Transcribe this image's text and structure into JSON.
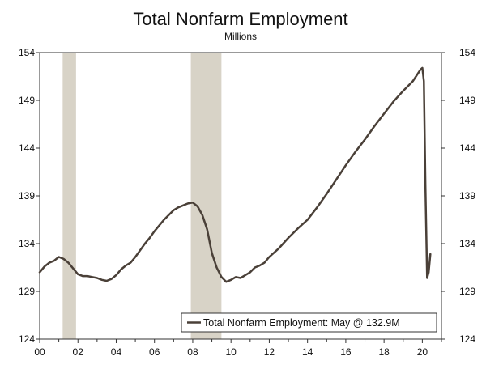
{
  "chart_data": {
    "type": "line",
    "title": "Total Nonfarm Employment",
    "subtitle": "Millions",
    "legend": "Total Nonfarm Employment: May @ 132.9M",
    "legend_position": "bottom-right",
    "xlim": [
      2000,
      2021
    ],
    "ylim": [
      124,
      154
    ],
    "x_ticks": [
      0,
      2,
      4,
      6,
      8,
      10,
      12,
      14,
      16,
      18,
      20
    ],
    "x_tick_labels": [
      "00",
      "02",
      "04",
      "06",
      "08",
      "10",
      "12",
      "14",
      "16",
      "18",
      "20"
    ],
    "y_ticks": [
      124,
      129,
      134,
      139,
      144,
      149,
      154
    ],
    "y_tick_labels": [
      "124",
      "129",
      "134",
      "139",
      "144",
      "149",
      "154"
    ],
    "grid": false,
    "recessions": [
      [
        2001.2,
        2001.9
      ],
      [
        2007.9,
        2009.5
      ]
    ],
    "colors": {
      "line": "#4a4038",
      "recession": "#d8d3c7",
      "axis": "#333333"
    },
    "series": [
      {
        "name": "Total Nonfarm Employment",
        "x": [
          2000.0,
          2000.25,
          2000.5,
          2000.75,
          2001.0,
          2001.25,
          2001.5,
          2001.75,
          2002.0,
          2002.25,
          2002.5,
          2002.75,
          2003.0,
          2003.25,
          2003.5,
          2003.75,
          2004.0,
          2004.25,
          2004.5,
          2004.75,
          2005.0,
          2005.25,
          2005.5,
          2005.75,
          2006.0,
          2006.25,
          2006.5,
          2006.75,
          2007.0,
          2007.25,
          2007.5,
          2007.75,
          2008.0,
          2008.25,
          2008.5,
          2008.75,
          2009.0,
          2009.25,
          2009.5,
          2009.75,
          2010.0,
          2010.25,
          2010.5,
          2010.75,
          2011.0,
          2011.25,
          2011.5,
          2011.75,
          2012.0,
          2012.5,
          2013.0,
          2013.5,
          2014.0,
          2014.5,
          2015.0,
          2015.5,
          2016.0,
          2016.5,
          2017.0,
          2017.5,
          2018.0,
          2018.5,
          2019.0,
          2019.5,
          2019.9,
          2020.0,
          2020.08,
          2020.16,
          2020.25,
          2020.33,
          2020.42
        ],
        "y": [
          131.0,
          131.6,
          132.0,
          132.2,
          132.6,
          132.4,
          132.0,
          131.4,
          130.8,
          130.6,
          130.6,
          130.5,
          130.4,
          130.2,
          130.1,
          130.3,
          130.7,
          131.3,
          131.7,
          132.0,
          132.6,
          133.3,
          134.0,
          134.6,
          135.3,
          135.9,
          136.5,
          137.0,
          137.5,
          137.8,
          138.0,
          138.2,
          138.3,
          137.9,
          137.0,
          135.5,
          133.0,
          131.5,
          130.5,
          130.0,
          130.2,
          130.5,
          130.4,
          130.7,
          131.0,
          131.5,
          131.7,
          132.0,
          132.6,
          133.5,
          134.6,
          135.6,
          136.5,
          137.8,
          139.2,
          140.7,
          142.2,
          143.6,
          144.9,
          146.3,
          147.6,
          148.9,
          150.0,
          151.0,
          152.2,
          152.4,
          151.0,
          140.0,
          130.4,
          131.0,
          132.9
        ]
      }
    ]
  }
}
